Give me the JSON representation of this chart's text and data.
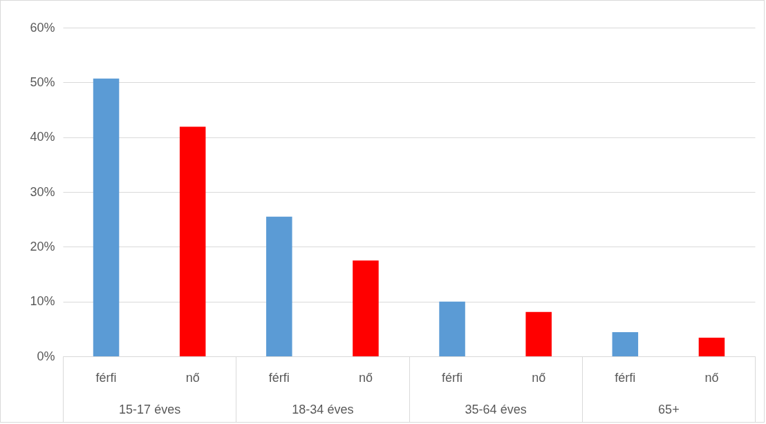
{
  "chart_data": {
    "type": "bar",
    "categories": [
      "15-17 éves",
      "18-34 éves",
      "35-64 éves",
      "65+"
    ],
    "series": [
      {
        "name": "férfi",
        "color": "#5b9bd5",
        "values": [
          50.7,
          25.5,
          10.0,
          4.4
        ]
      },
      {
        "name": "nő",
        "color": "#ff0000",
        "values": [
          41.9,
          17.5,
          8.1,
          3.4
        ]
      }
    ],
    "ylim": [
      0,
      60
    ],
    "yticks": [
      {
        "value": 0,
        "label": "0%"
      },
      {
        "value": 10,
        "label": "10%"
      },
      {
        "value": 20,
        "label": "20%"
      },
      {
        "value": 30,
        "label": "30%"
      },
      {
        "value": 40,
        "label": "40%"
      },
      {
        "value": 50,
        "label": "50%"
      },
      {
        "value": 60,
        "label": "60%"
      }
    ],
    "grid": "y"
  }
}
